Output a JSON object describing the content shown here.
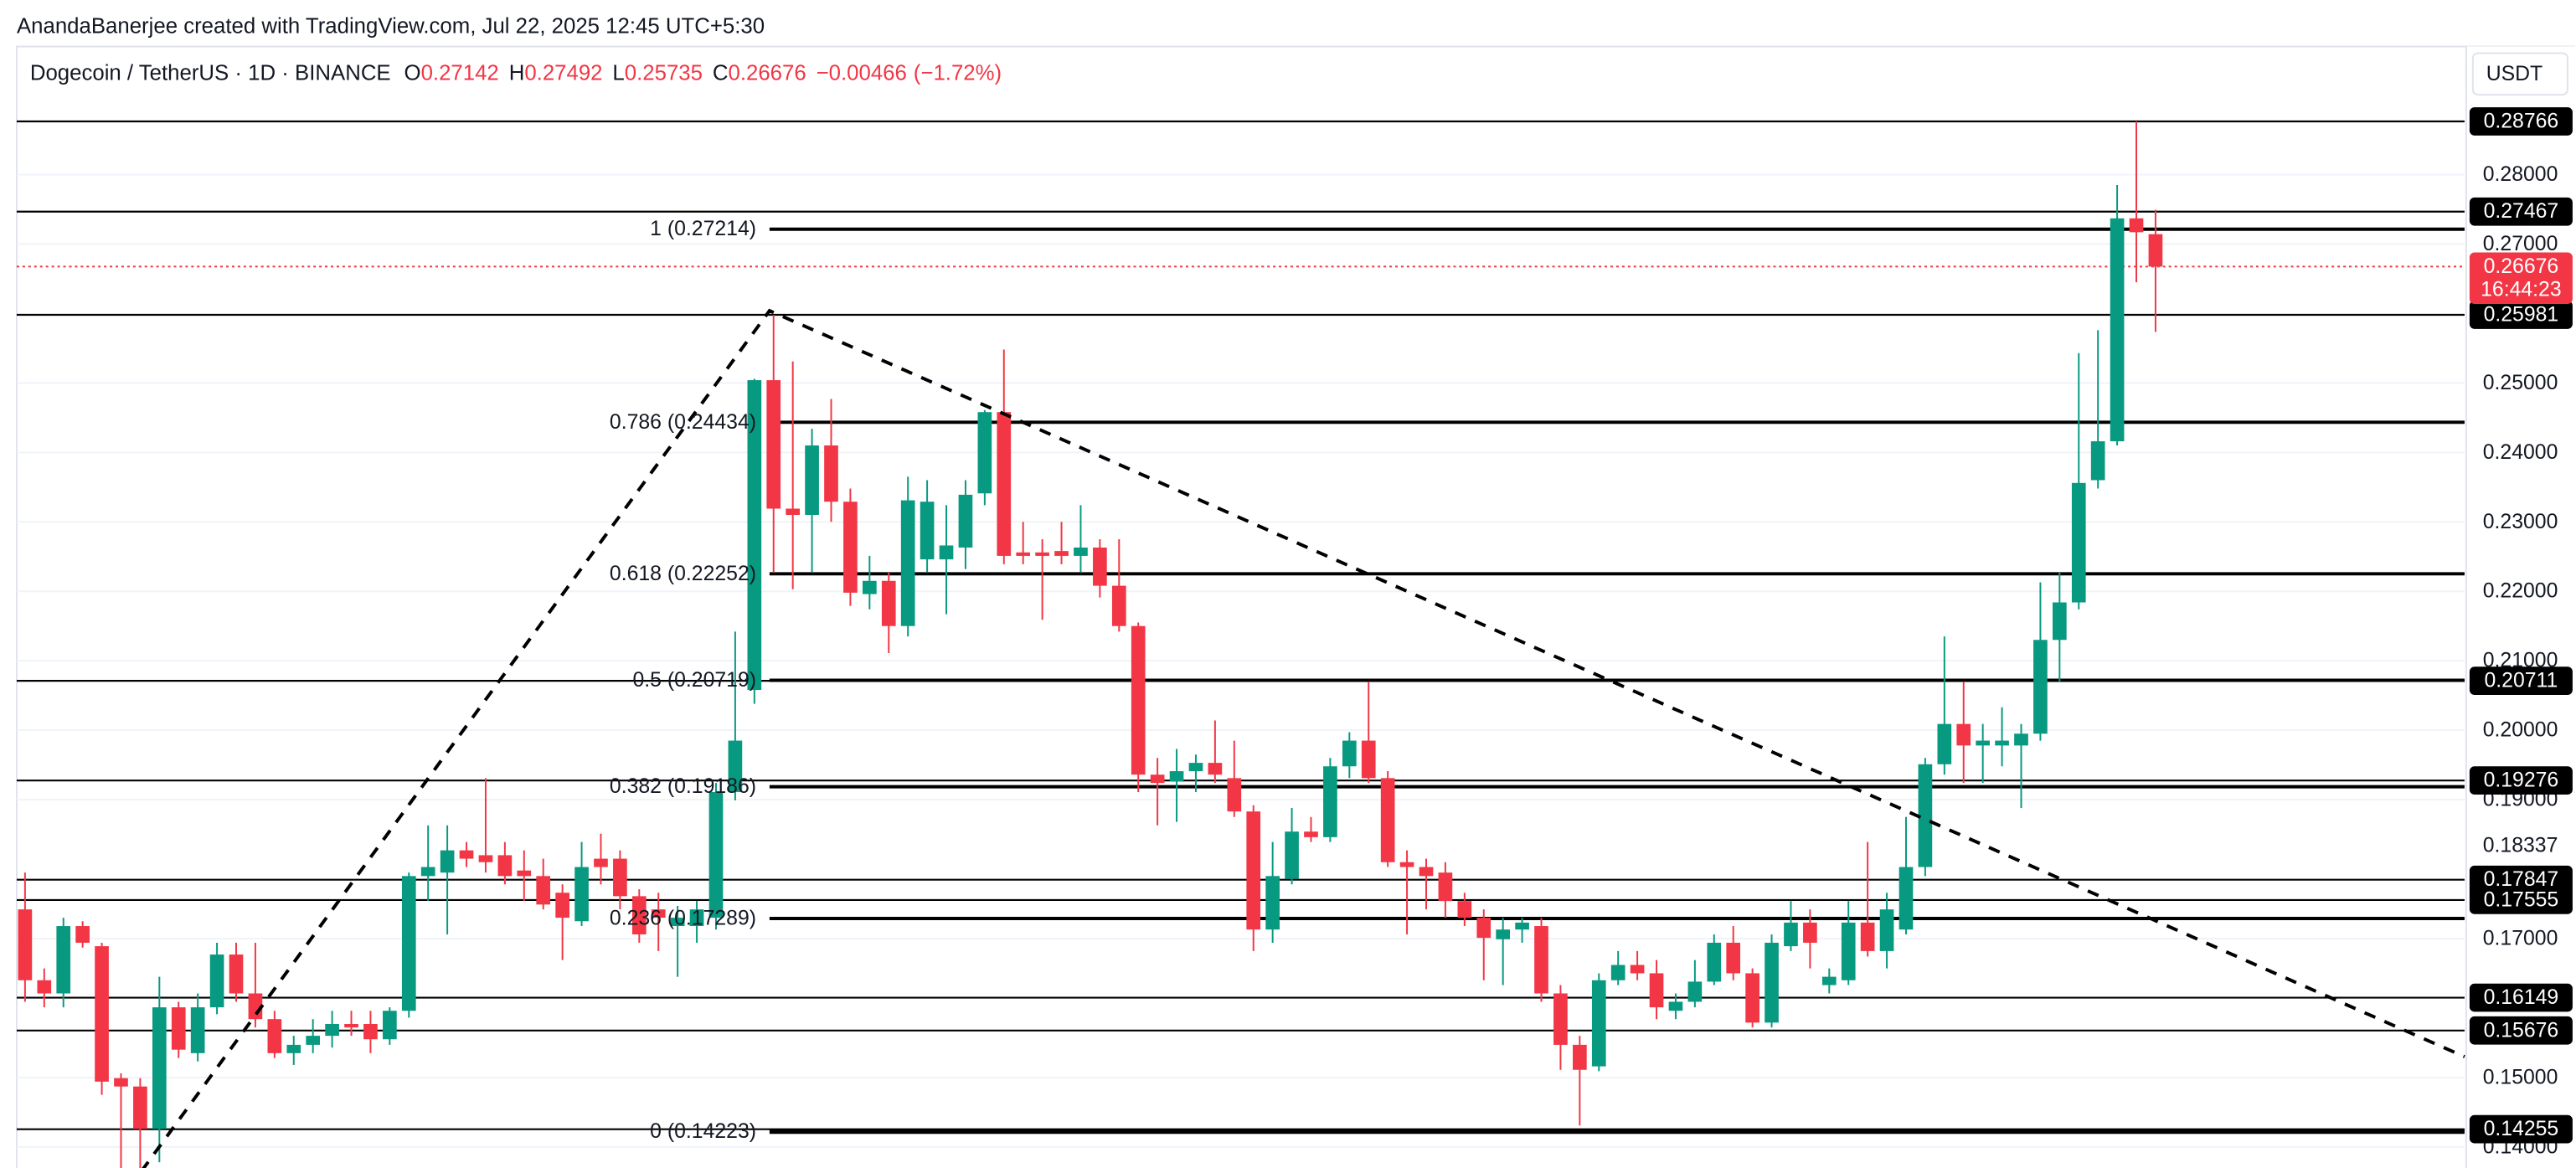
{
  "chart_data": {
    "type": "candlestick",
    "credit": "AnandaBanerjee created with TradingView.com, Jul 22, 2025 12:45 UTC+5:30",
    "symbol": "Dogecoin / TetherUS · 1D · BINANCE",
    "ohlc_keys": [
      "O",
      "H",
      "L",
      "C"
    ],
    "change": {
      "value": -0.00466,
      "label": "−0.00466"
    },
    "change_pct": {
      "value": -1.72,
      "label": "(−1.72%)"
    },
    "currency": "USDT",
    "up_color": "#089981",
    "down_color": "#f23645",
    "ylim": [
      0.13529,
      0.29844
    ],
    "yticks": [
      {
        "value": 0.28,
        "label": "0.28000"
      },
      {
        "value": 0.27,
        "label": "0.27000"
      },
      {
        "value": 0.25,
        "label": "0.25000"
      },
      {
        "value": 0.24,
        "label": "0.24000"
      },
      {
        "value": 0.23,
        "label": "0.23000"
      },
      {
        "value": 0.22,
        "label": "0.22000"
      },
      {
        "value": 0.21,
        "label": "0.21000"
      },
      {
        "value": 0.2,
        "label": "0.20000"
      },
      {
        "value": 0.19,
        "label": "0.19000"
      },
      {
        "value": 0.17,
        "label": "0.17000"
      },
      {
        "value": 0.15,
        "label": "0.15000"
      },
      {
        "value": 0.14,
        "label": "0.14000"
      }
    ],
    "grid": true,
    "price_lines": [
      0.28766,
      0.27467,
      0.25981,
      0.20711,
      0.19276,
      0.17847,
      0.17555,
      0.16149,
      0.15676,
      0.14255
    ],
    "untagged_levels": [
      0.18337
    ],
    "last_price": 0.26676,
    "countdown": "16:44:23",
    "fibonacci": [
      {
        "label": "1 (0.27214)",
        "value": 0.27214
      },
      {
        "label": "0.786 (0.24434)",
        "value": 0.24434
      },
      {
        "label": "0.618 (0.22252)",
        "value": 0.22252
      },
      {
        "label": "0.5 (0.20719)",
        "value": 0.20719
      },
      {
        "label": "0.382 (0.19186)",
        "value": 0.19186
      },
      {
        "label": "0.236 (0.17289)",
        "value": 0.17289
      },
      {
        "label": "0 (0.14223)",
        "value": 0.14223
      }
    ],
    "open": [
      0.1742,
      0.164,
      0.1621,
      0.1718,
      0.1689,
      0.1499,
      0.1487,
      0.1426,
      0.1601,
      0.1535,
      0.1601,
      0.1677,
      0.1621,
      0.1584,
      0.1535,
      0.1547,
      0.156,
      0.1577,
      0.1577,
      0.1555,
      0.1596,
      0.179,
      0.1795,
      0.1827,
      0.182,
      0.182,
      0.1798,
      0.179,
      0.1766,
      0.1725,
      0.1815,
      0.1815,
      0.1761,
      0.1742,
      0.1718,
      0.1718,
      0.173,
      0.1911,
      0.2058,
      0.2504,
      0.2319,
      0.231,
      0.241,
      0.2329,
      0.2196,
      0.2215,
      0.215,
      0.2246,
      0.2246,
      0.2263,
      0.2341,
      0.2458,
      0.2256,
      0.2256,
      0.2258,
      0.2251,
      0.2263,
      0.2208,
      0.215,
      0.1936,
      0.1926,
      0.1941,
      0.1953,
      0.1931,
      0.1883,
      0.1713,
      0.1786,
      0.1854,
      0.1846,
      0.1948,
      0.1985,
      0.1931,
      0.181,
      0.1803,
      0.1795,
      0.1754,
      0.173,
      0.1699,
      0.1713,
      0.1718,
      0.1621,
      0.1547,
      0.1516,
      0.164,
      0.1662,
      0.165,
      0.1596,
      0.1609,
      0.1638,
      0.1694,
      0.165,
      0.1579,
      0.1689,
      0.1723,
      0.1633,
      0.164,
      0.1723,
      0.1682,
      0.1713,
      0.1803,
      0.1951,
      0.2009,
      0.1978,
      0.1978,
      0.1978,
      0.1995,
      0.213,
      0.2184,
      0.236,
      0.2416,
      0.2737,
      0.27142
    ],
    "high": [
      0.1795,
      0.1657,
      0.173,
      0.1725,
      0.1694,
      0.1506,
      0.1499,
      0.1645,
      0.1609,
      0.1621,
      0.1694,
      0.1694,
      0.1694,
      0.1596,
      0.156,
      0.1584,
      0.1596,
      0.1596,
      0.1596,
      0.1601,
      0.1795,
      0.1863,
      0.1863,
      0.1839,
      0.1931,
      0.1839,
      0.1827,
      0.1815,
      0.1778,
      0.1839,
      0.1851,
      0.1827,
      0.1771,
      0.1766,
      0.1747,
      0.1754,
      0.1924,
      0.2142,
      0.2506,
      0.2598,
      0.2531,
      0.2434,
      0.2477,
      0.2348,
      0.2251,
      0.2227,
      0.2365,
      0.236,
      0.2324,
      0.236,
      0.2461,
      0.2548,
      0.23,
      0.2275,
      0.23,
      0.2324,
      0.2275,
      0.2275,
      0.2155,
      0.196,
      0.1973,
      0.1965,
      0.2014,
      0.1985,
      0.1892,
      0.1839,
      0.1888,
      0.1875,
      0.196,
      0.1997,
      0.207,
      0.1941,
      0.1827,
      0.1815,
      0.181,
      0.1766,
      0.1742,
      0.173,
      0.173,
      0.173,
      0.1633,
      0.156,
      0.165,
      0.1682,
      0.1682,
      0.1669,
      0.1621,
      0.1669,
      0.1706,
      0.1718,
      0.1657,
      0.1706,
      0.1754,
      0.1742,
      0.1657,
      0.1754,
      0.1839,
      0.1766,
      0.1875,
      0.196,
      0.2135,
      0.207,
      0.2009,
      0.2033,
      0.2009,
      0.2213,
      0.2227,
      0.2543,
      0.2576,
      0.2785,
      0.28766,
      0.27492
    ],
    "low": [
      0.1609,
      0.1601,
      0.1601,
      0.1687,
      0.1475,
      0.133,
      0.1354,
      0.1378,
      0.1528,
      0.1523,
      0.1591,
      0.1609,
      0.1572,
      0.1528,
      0.1518,
      0.1535,
      0.1543,
      0.156,
      0.1535,
      0.1547,
      0.1586,
      0.1754,
      0.1706,
      0.1803,
      0.1795,
      0.1778,
      0.1754,
      0.1742,
      0.1669,
      0.1718,
      0.1778,
      0.1742,
      0.1694,
      0.1682,
      0.1645,
      0.1694,
      0.1713,
      0.1899,
      0.2038,
      0.2227,
      0.2203,
      0.2227,
      0.23,
      0.2179,
      0.2174,
      0.2111,
      0.2135,
      0.2227,
      0.2167,
      0.2232,
      0.2324,
      0.2239,
      0.2239,
      0.2159,
      0.2239,
      0.2227,
      0.2191,
      0.2142,
      0.1911,
      0.1863,
      0.1868,
      0.1911,
      0.1924,
      0.1875,
      0.1682,
      0.1694,
      0.1778,
      0.1839,
      0.1839,
      0.1931,
      0.1924,
      0.1803,
      0.1706,
      0.1742,
      0.173,
      0.1718,
      0.164,
      0.1633,
      0.1694,
      0.1609,
      0.1511,
      0.1431,
      0.1509,
      0.1633,
      0.164,
      0.1584,
      0.1584,
      0.1601,
      0.1633,
      0.164,
      0.1572,
      0.1572,
      0.1682,
      0.1657,
      0.1621,
      0.1633,
      0.1674,
      0.1657,
      0.1706,
      0.179,
      0.1936,
      0.1924,
      0.1924,
      0.1948,
      0.1888,
      0.1985,
      0.207,
      0.2174,
      0.2348,
      0.241,
      0.2645,
      0.25735
    ],
    "close": [
      0.164,
      0.1621,
      0.1718,
      0.1694,
      0.1494,
      0.1487,
      0.1426,
      0.1601,
      0.154,
      0.1601,
      0.1677,
      0.1621,
      0.1584,
      0.1535,
      0.1547,
      0.156,
      0.1577,
      0.1572,
      0.1555,
      0.1596,
      0.179,
      0.1803,
      0.1827,
      0.1815,
      0.181,
      0.179,
      0.179,
      0.1749,
      0.173,
      0.1803,
      0.1803,
      0.1761,
      0.1706,
      0.173,
      0.173,
      0.1742,
      0.1911,
      0.1985,
      0.2504,
      0.2319,
      0.231,
      0.241,
      0.2329,
      0.2198,
      0.2215,
      0.215,
      0.2331,
      0.2329,
      0.2266,
      0.2339,
      0.2458,
      0.2251,
      0.2251,
      0.2251,
      0.2251,
      0.2263,
      0.2208,
      0.215,
      0.1936,
      0.1924,
      0.1941,
      0.1953,
      0.1936,
      0.1883,
      0.1713,
      0.179,
      0.1854,
      0.1846,
      0.1948,
      0.1985,
      0.1931,
      0.181,
      0.1803,
      0.179,
      0.1754,
      0.173,
      0.1701,
      0.1713,
      0.1723,
      0.1621,
      0.1547,
      0.1511,
      0.164,
      0.1662,
      0.165,
      0.1601,
      0.1609,
      0.1638,
      0.1694,
      0.165,
      0.1579,
      0.1694,
      0.1723,
      0.1694,
      0.1645,
      0.1723,
      0.1682,
      0.1742,
      0.1803,
      0.1951,
      0.2009,
      0.1978,
      0.1985,
      0.1985,
      0.1995,
      0.213,
      0.2184,
      0.2356,
      0.2416,
      0.2737,
      0.2717,
      0.26676
    ]
  }
}
